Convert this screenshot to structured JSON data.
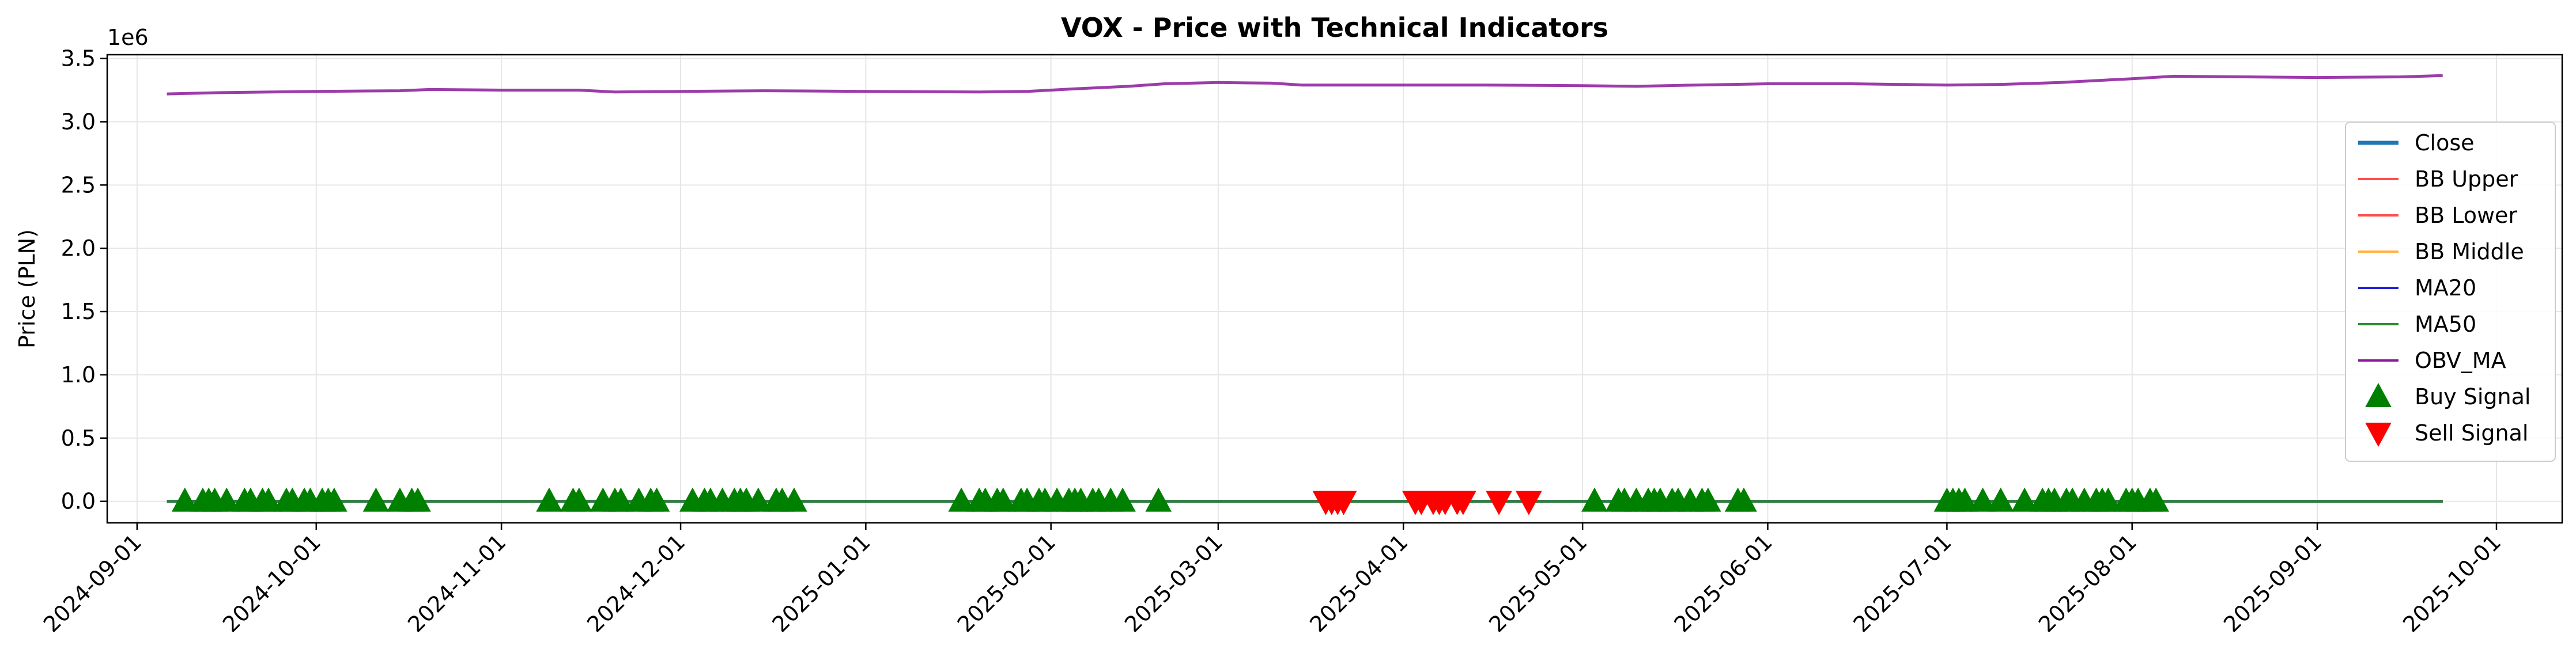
{
  "chart_data": {
    "type": "line",
    "title": "VOX - Price with Technical Indicators",
    "xlabel": "",
    "ylabel": "Price (PLN)",
    "y_offset_label": "1e6",
    "x_type": "date",
    "xlim": [
      "2024-08-27",
      "2025-10-12"
    ],
    "ylim": [
      -170000,
      3530000
    ],
    "grid": true,
    "legend_position": "center-right",
    "x_ticks": [
      "2024-09-01",
      "2024-10-01",
      "2024-11-01",
      "2024-12-01",
      "2025-01-01",
      "2025-02-01",
      "2025-03-01",
      "2025-04-01",
      "2025-05-01",
      "2025-06-01",
      "2025-07-01",
      "2025-08-01",
      "2025-09-01",
      "2025-10-01"
    ],
    "y_ticks": [
      0,
      500000,
      1000000,
      1500000,
      2000000,
      2500000,
      3000000,
      3500000
    ],
    "y_tick_labels": [
      "0.0",
      "0.5",
      "1.0",
      "1.5",
      "2.0",
      "2.5",
      "3.0",
      "3.5"
    ],
    "series": [
      {
        "name": "Close",
        "kind": "line",
        "color": "#1f77b4",
        "points": [
          [
            "2024-09-06",
            0
          ],
          [
            "2025-09-22",
            0
          ]
        ]
      },
      {
        "name": "BB Upper",
        "kind": "line",
        "color": "#ff4d4d",
        "points": [
          [
            "2024-09-06",
            0
          ],
          [
            "2025-09-22",
            0
          ]
        ]
      },
      {
        "name": "BB Lower",
        "kind": "line",
        "color": "#ff4d4d",
        "points": [
          [
            "2024-09-06",
            0
          ],
          [
            "2025-09-22",
            0
          ]
        ]
      },
      {
        "name": "BB Middle",
        "kind": "line",
        "color": "#ffb347",
        "points": [
          [
            "2024-09-06",
            0
          ],
          [
            "2025-09-22",
            0
          ]
        ]
      },
      {
        "name": "MA20",
        "kind": "line",
        "color": "#2020e0",
        "points": [
          [
            "2024-09-06",
            0
          ],
          [
            "2025-09-22",
            0
          ]
        ]
      },
      {
        "name": "MA50",
        "kind": "line",
        "color": "#2e8b2e",
        "points": [
          [
            "2024-09-06",
            0
          ],
          [
            "2025-09-22",
            0
          ]
        ]
      },
      {
        "name": "OBV_MA",
        "kind": "line",
        "color": "#8b1a9b",
        "points": [
          [
            "2024-09-06",
            3220000
          ],
          [
            "2024-09-15",
            3230000
          ],
          [
            "2024-10-01",
            3240000
          ],
          [
            "2024-10-15",
            3245000
          ],
          [
            "2024-10-20",
            3255000
          ],
          [
            "2024-11-01",
            3250000
          ],
          [
            "2024-11-14",
            3250000
          ],
          [
            "2024-11-20",
            3235000
          ],
          [
            "2024-12-01",
            3240000
          ],
          [
            "2024-12-15",
            3245000
          ],
          [
            "2025-01-01",
            3240000
          ],
          [
            "2025-01-20",
            3235000
          ],
          [
            "2025-01-28",
            3240000
          ],
          [
            "2025-02-05",
            3260000
          ],
          [
            "2025-02-14",
            3280000
          ],
          [
            "2025-02-20",
            3300000
          ],
          [
            "2025-03-01",
            3310000
          ],
          [
            "2025-03-10",
            3305000
          ],
          [
            "2025-03-15",
            3290000
          ],
          [
            "2025-04-01",
            3290000
          ],
          [
            "2025-04-15",
            3290000
          ],
          [
            "2025-05-01",
            3285000
          ],
          [
            "2025-05-10",
            3280000
          ],
          [
            "2025-05-20",
            3290000
          ],
          [
            "2025-06-01",
            3300000
          ],
          [
            "2025-06-15",
            3300000
          ],
          [
            "2025-07-01",
            3290000
          ],
          [
            "2025-07-10",
            3295000
          ],
          [
            "2025-07-20",
            3310000
          ],
          [
            "2025-08-01",
            3340000
          ],
          [
            "2025-08-08",
            3360000
          ],
          [
            "2025-08-20",
            3355000
          ],
          [
            "2025-09-01",
            3350000
          ],
          [
            "2025-09-15",
            3355000
          ],
          [
            "2025-09-22",
            3365000
          ]
        ]
      },
      {
        "name": "Buy Signal",
        "kind": "marker",
        "marker": "triangle-up",
        "color": "#008000",
        "y": 0,
        "dates": [
          "2024-09-09",
          "2024-09-12",
          "2024-09-13",
          "2024-09-14",
          "2024-09-16",
          "2024-09-19",
          "2024-09-20",
          "2024-09-22",
          "2024-09-23",
          "2024-09-26",
          "2024-09-27",
          "2024-09-29",
          "2024-09-30",
          "2024-10-02",
          "2024-10-03",
          "2024-10-04",
          "2024-10-11",
          "2024-10-15",
          "2024-10-17",
          "2024-10-18",
          "2024-11-09",
          "2024-11-13",
          "2024-11-14",
          "2024-11-18",
          "2024-11-20",
          "2024-11-21",
          "2024-11-24",
          "2024-11-26",
          "2024-11-27",
          "2024-12-03",
          "2024-12-05",
          "2024-12-06",
          "2024-12-08",
          "2024-12-10",
          "2024-12-11",
          "2024-12-12",
          "2024-12-14",
          "2024-12-17",
          "2024-12-18",
          "2024-12-20",
          "2025-01-17",
          "2025-01-20",
          "2025-01-21",
          "2025-01-23",
          "2025-01-24",
          "2025-01-27",
          "2025-01-28",
          "2025-01-30",
          "2025-01-31",
          "2025-02-02",
          "2025-02-04",
          "2025-02-05",
          "2025-02-06",
          "2025-02-08",
          "2025-02-09",
          "2025-02-11",
          "2025-02-13",
          "2025-02-19",
          "2025-05-03",
          "2025-05-07",
          "2025-05-08",
          "2025-05-10",
          "2025-05-12",
          "2025-05-13",
          "2025-05-14",
          "2025-05-16",
          "2025-05-17",
          "2025-05-19",
          "2025-05-21",
          "2025-05-22",
          "2025-05-27",
          "2025-05-28",
          "2025-07-01",
          "2025-07-02",
          "2025-07-03",
          "2025-07-04",
          "2025-07-07",
          "2025-07-10",
          "2025-07-14",
          "2025-07-17",
          "2025-07-18",
          "2025-07-19",
          "2025-07-21",
          "2025-07-22",
          "2025-07-24",
          "2025-07-26",
          "2025-07-27",
          "2025-07-28",
          "2025-07-31",
          "2025-08-01",
          "2025-08-02",
          "2025-08-04",
          "2025-08-05"
        ]
      },
      {
        "name": "Sell Signal",
        "kind": "marker",
        "marker": "triangle-down",
        "color": "#ff0000",
        "y": 0,
        "dates": [
          "2025-03-19",
          "2025-03-20",
          "2025-03-21",
          "2025-03-22",
          "2025-04-03",
          "2025-04-04",
          "2025-04-06",
          "2025-04-07",
          "2025-04-08",
          "2025-04-10",
          "2025-04-11",
          "2025-04-17",
          "2025-04-22"
        ]
      }
    ]
  }
}
